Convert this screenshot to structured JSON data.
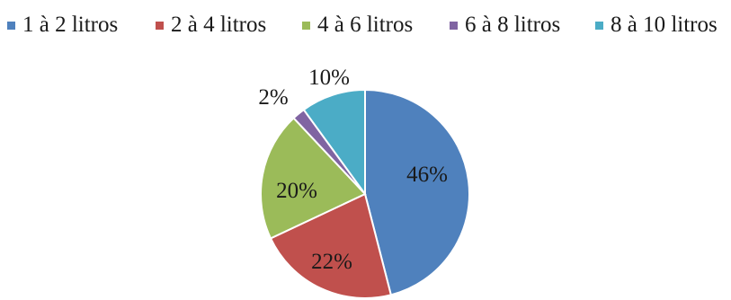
{
  "chart_data": {
    "type": "pie",
    "title": "",
    "legend_position": "top",
    "start_angle_deg": 0,
    "direction": "clockwise",
    "slices": [
      {
        "label": "1 à 2 litros",
        "value": 46,
        "display": "46%",
        "color": "#4f81bd"
      },
      {
        "label": "2 à 4 litros",
        "value": 22,
        "display": "22%",
        "color": "#c0504d"
      },
      {
        "label": "4 à 6 litros",
        "value": 20,
        "display": "20%",
        "color": "#9bbb59"
      },
      {
        "label": "6 à 8 litros",
        "value": 2,
        "display": "2%",
        "color": "#8064a2"
      },
      {
        "label": "8 à 10 litros",
        "value": 10,
        "display": "10%",
        "color": "#4bacc6"
      }
    ]
  }
}
